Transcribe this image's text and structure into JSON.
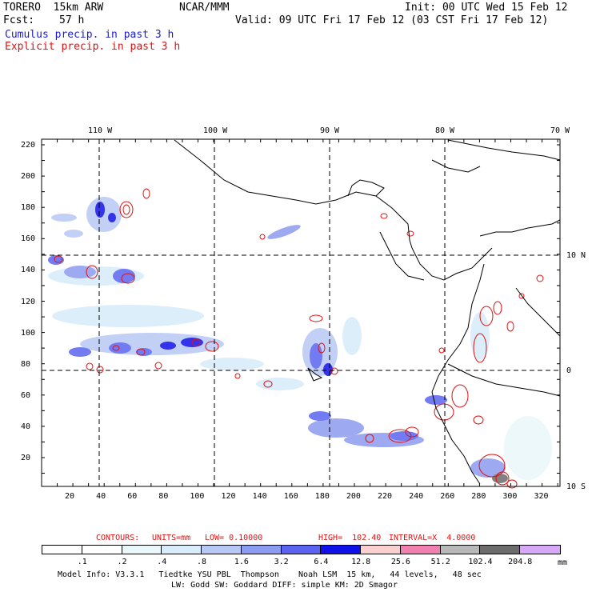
{
  "header": {
    "model": "TORERO  15km ARW",
    "org": "NCAR/MMM",
    "init": "Init: 00 UTC Wed 15 Feb 12",
    "fcst_label": "Fcst:",
    "fcst_value": "57 h",
    "valid": "Valid: 09 UTC Fri 17 Feb 12 (03 CST Fri 17 Feb 12)"
  },
  "legend": {
    "cumulus": "Cumulus precip. in past 3 h",
    "explicit": "Explicit precip. in past 3 h"
  },
  "map": {
    "lon_labels": [
      "110 W",
      "100 W",
      "90 W",
      "80 W",
      "70 W"
    ],
    "lat_labels": [
      "10 N",
      "0",
      "10 S"
    ],
    "y_ticks": [
      "220",
      "200",
      "180",
      "160",
      "140",
      "120",
      "100",
      "80",
      "60",
      "40",
      "20"
    ],
    "x_ticks": [
      "20",
      "40",
      "60",
      "80",
      "100",
      "120",
      "140",
      "160",
      "180",
      "200",
      "220",
      "240",
      "260",
      "280",
      "300",
      "320"
    ]
  },
  "contour_info": {
    "label": "CONTOURS:",
    "units": "UNITS=mm",
    "low": "LOW= 0.10000",
    "high": "HIGH=  102.40",
    "interval": "INTERVAL=X  4.0000"
  },
  "colorbar": {
    "labels": [
      ".1",
      ".2",
      ".4",
      ".8",
      "1.6",
      "3.2",
      "6.4",
      "12.8",
      "25.6",
      "51.2",
      "102.4",
      "204.8"
    ],
    "unit": "mm",
    "colors": [
      "#ffffff",
      "#ffffff",
      "#eaf7fb",
      "#d8ecfb",
      "#b8c8f4",
      "#8c9cf0",
      "#5a64f0",
      "#1010e8",
      "#fbd0d0",
      "#f080b0",
      "#b8b8b8",
      "#6c6c6c",
      "#d8a8f8"
    ]
  },
  "footer": {
    "line1": "Model Info: V3.3.1   Tiedtke YSU PBL  Thompson    Noah LSM  15 km,   44 levels,   48 sec",
    "line2": "LW: Godd SW: Goddard DIFF: simple KM: 2D Smagor"
  }
}
